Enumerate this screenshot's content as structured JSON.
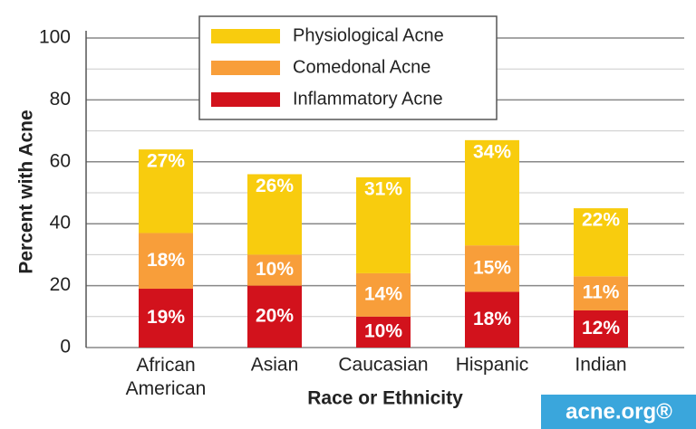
{
  "chart_data": {
    "type": "stacked-bar",
    "x_label": "Race or Ethnicity",
    "y_label": "Percent with Acne",
    "watermark": "acne.org®",
    "categories": [
      "African American",
      "Asian",
      "Caucasian",
      "Hispanic",
      "Indian"
    ],
    "series": [
      {
        "name": "Inflammatory Acne",
        "color": "#d2121c",
        "values": [
          19,
          20,
          10,
          18,
          12
        ],
        "value_labels": [
          "19%",
          "20%",
          "10%",
          "18%",
          "12%"
        ]
      },
      {
        "name": "Comedonal Acne",
        "color": "#f89e3a",
        "values": [
          18,
          10,
          14,
          15,
          11
        ],
        "value_labels": [
          "18%",
          "10%",
          "14%",
          "15%",
          "11%"
        ]
      },
      {
        "name": "Physiological Acne",
        "color": "#f8cc0e",
        "values": [
          27,
          26,
          31,
          34,
          22
        ],
        "value_labels": [
          "27%",
          "26%",
          "31%",
          "34%",
          "22%"
        ]
      }
    ],
    "ylim": [
      0,
      100
    ],
    "yticks": [
      0,
      20,
      40,
      60,
      80,
      100
    ],
    "grid": true,
    "minor_grid": true,
    "legend": "top"
  }
}
